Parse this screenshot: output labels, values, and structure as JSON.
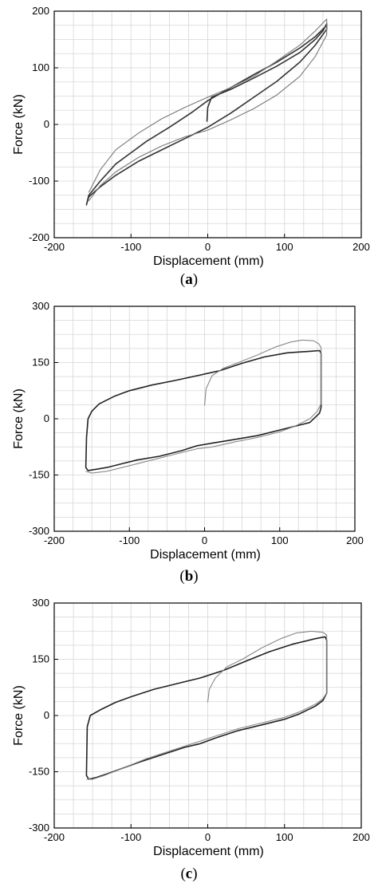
{
  "chart_data": [
    {
      "type": "line",
      "panel": "a",
      "caption_open": "(",
      "caption_letter": "a",
      "caption_close": ")",
      "xlabel": "Displacement (mm)",
      "ylabel": "Force (kN)",
      "xlim": [
        -200,
        200
      ],
      "ylim": [
        -200,
        200
      ],
      "xticks": [
        -200,
        -100,
        0,
        100,
        200
      ],
      "yticks": [
        -200,
        -100,
        0,
        100,
        200
      ],
      "minor_grid_step": 25,
      "grid": true,
      "series": [
        {
          "color": "#333333",
          "x": [
            -1,
            0,
            5,
            30,
            60,
            90,
            120,
            140,
            150,
            155,
            155,
            140,
            120,
            90,
            60,
            30,
            0,
            -30,
            -60,
            -90,
            -120,
            -140,
            -155,
            -158,
            -155,
            -140,
            -120,
            -100,
            -80,
            -50,
            -20,
            0,
            30,
            60,
            90,
            120,
            140,
            155
          ],
          "y": [
            5,
            30,
            48,
            62,
            82,
            103,
            127,
            150,
            165,
            178,
            168,
            140,
            110,
            76,
            48,
            20,
            -5,
            -25,
            -45,
            -65,
            -90,
            -110,
            -128,
            -142,
            -125,
            -100,
            -70,
            -50,
            -30,
            -5,
            22,
            42,
            65,
            88,
            110,
            135,
            155,
            175
          ]
        },
        {
          "color": "#777777",
          "x": [
            -155,
            -140,
            -120,
            -90,
            -60,
            -30,
            0,
            30,
            60,
            90,
            120,
            140,
            155,
            155,
            140,
            120,
            90,
            60,
            30,
            0,
            -30,
            -60,
            -90,
            -120,
            -140,
            -155
          ],
          "y": [
            -135,
            -108,
            -84,
            -58,
            -38,
            -22,
            -10,
            8,
            28,
            52,
            85,
            120,
            158,
            186,
            165,
            140,
            112,
            85,
            65,
            48,
            30,
            10,
            -15,
            -45,
            -80,
            -120
          ]
        }
      ]
    },
    {
      "type": "line",
      "panel": "b",
      "caption_open": "(",
      "caption_letter": "b",
      "caption_close": ")",
      "xlabel": "Displacement (mm)",
      "ylabel": "Force (kN)",
      "xlim": [
        -200,
        200
      ],
      "ylim": [
        -300,
        300
      ],
      "xticks": [
        -200,
        -100,
        0,
        100,
        200
      ],
      "yticks": [
        -300,
        -150,
        0,
        150,
        300
      ],
      "minor_grid_step": 25,
      "grid": true,
      "series": [
        {
          "color": "#222222",
          "x": [
            -155,
            -150,
            -140,
            -120,
            -100,
            -70,
            -40,
            -10,
            20,
            50,
            80,
            110,
            140,
            153,
            155,
            155,
            153,
            140,
            120,
            100,
            70,
            40,
            10,
            -10,
            -30,
            -60,
            -90,
            -110,
            -130,
            -145,
            -155,
            -158,
            -157,
            -155
          ],
          "y": [
            0,
            20,
            40,
            60,
            75,
            90,
            102,
            115,
            128,
            148,
            165,
            176,
            180,
            182,
            175,
            30,
            15,
            -10,
            -20,
            -30,
            -45,
            -55,
            -65,
            -72,
            -85,
            -100,
            -110,
            -120,
            -130,
            -135,
            -138,
            -130,
            -50,
            0
          ]
        },
        {
          "color": "#888888",
          "x": [
            0,
            2,
            10,
            25,
            45,
            70,
            95,
            115,
            130,
            145,
            152,
            155,
            155,
            150,
            140,
            120,
            100,
            70,
            40,
            10,
            -10,
            -40,
            -70,
            -100,
            -130,
            -150,
            -158
          ],
          "y": [
            35,
            80,
            115,
            135,
            150,
            170,
            192,
            205,
            210,
            208,
            200,
            190,
            40,
            20,
            0,
            -20,
            -35,
            -50,
            -62,
            -75,
            -80,
            -95,
            -110,
            -125,
            -140,
            -145,
            -140
          ]
        }
      ]
    },
    {
      "type": "line",
      "panel": "c",
      "caption_open": "(",
      "caption_letter": "c",
      "caption_close": ")",
      "xlabel": "Displacement (mm)",
      "ylabel": "Force (kN)",
      "xlim": [
        -200,
        200
      ],
      "ylim": [
        -300,
        300
      ],
      "xticks": [
        -200,
        -100,
        0,
        100,
        200
      ],
      "yticks": [
        -300,
        -150,
        0,
        150,
        300
      ],
      "minor_grid_step": 25,
      "grid": true,
      "series": [
        {
          "color": "#222222",
          "x": [
            -157,
            -153,
            -140,
            -120,
            -100,
            -70,
            -40,
            -10,
            20,
            50,
            80,
            110,
            140,
            153,
            155,
            155,
            150,
            140,
            120,
            100,
            70,
            40,
            10,
            -10,
            -30,
            -60,
            -90,
            -110,
            -130,
            -145,
            -155,
            -158,
            -157
          ],
          "y": [
            -30,
            0,
            15,
            35,
            50,
            70,
            85,
            100,
            120,
            145,
            170,
            190,
            205,
            210,
            200,
            60,
            40,
            25,
            5,
            -10,
            -25,
            -40,
            -60,
            -75,
            -85,
            -105,
            -125,
            -140,
            -155,
            -165,
            -170,
            -160,
            -30
          ]
        },
        {
          "color": "#888888",
          "x": [
            0,
            2,
            10,
            25,
            45,
            70,
            95,
            115,
            135,
            150,
            155,
            155,
            150,
            140,
            120,
            100,
            70,
            40,
            10,
            -20,
            -50,
            -80,
            -110,
            -135,
            -150,
            -158
          ],
          "y": [
            35,
            70,
            100,
            130,
            150,
            180,
            205,
            220,
            225,
            222,
            215,
            60,
            45,
            30,
            10,
            -5,
            -20,
            -35,
            -55,
            -75,
            -95,
            -115,
            -140,
            -160,
            -170,
            -170
          ]
        }
      ]
    }
  ]
}
